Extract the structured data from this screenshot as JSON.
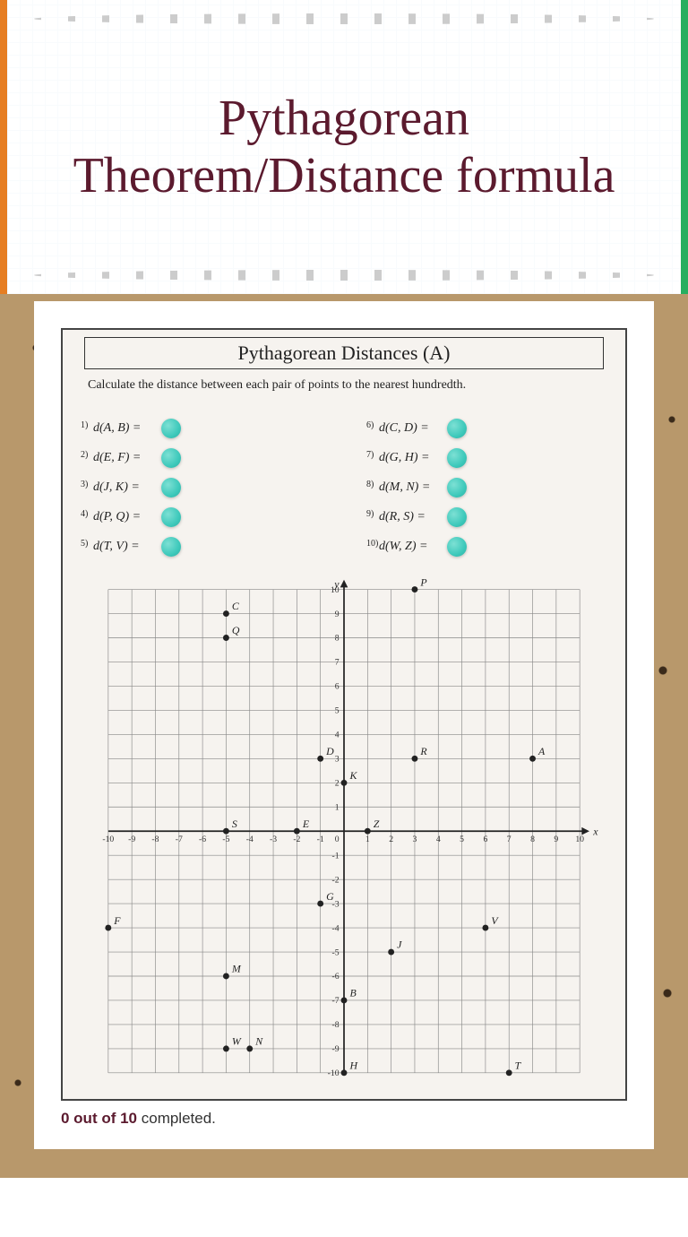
{
  "header": {
    "title": "Pythagorean Theorem/Distance formula",
    "title_color": "#5b1a2e",
    "title_fontsize": 56
  },
  "worksheet": {
    "title": "Pythagorean Distances (A)",
    "instruction": "Calculate the distance between each pair of points to the nearest hundredth.",
    "problems_left": [
      {
        "n": "1)",
        "label": "d(A, B) ="
      },
      {
        "n": "2)",
        "label": "d(E, F) ="
      },
      {
        "n": "3)",
        "label": "d(J, K) ="
      },
      {
        "n": "4)",
        "label": "d(P, Q) ="
      },
      {
        "n": "5)",
        "label": "d(T, V) ="
      }
    ],
    "problems_right": [
      {
        "n": "6)",
        "label": "d(C, D) ="
      },
      {
        "n": "7)",
        "label": "d(G, H) ="
      },
      {
        "n": "8)",
        "label": "d(M, N) ="
      },
      {
        "n": "9)",
        "label": "d(R, S) ="
      },
      {
        "n": "10)",
        "label": "d(W, Z) ="
      }
    ],
    "graph": {
      "xlim": [
        -10,
        10
      ],
      "ylim": [
        -10,
        10
      ],
      "tick_step": 1,
      "background": "#f6f3ef",
      "grid_color": "#888888",
      "axis_color": "#222222",
      "points": [
        {
          "l": "A",
          "x": 8,
          "y": 3
        },
        {
          "l": "B",
          "x": 0,
          "y": -7
        },
        {
          "l": "C",
          "x": -5,
          "y": 9
        },
        {
          "l": "D",
          "x": -1,
          "y": 3
        },
        {
          "l": "E",
          "x": -2,
          "y": 0
        },
        {
          "l": "F",
          "x": -10,
          "y": -4
        },
        {
          "l": "G",
          "x": -1,
          "y": -3
        },
        {
          "l": "H",
          "x": 0,
          "y": -10
        },
        {
          "l": "J",
          "x": 2,
          "y": -5
        },
        {
          "l": "K",
          "x": 0,
          "y": 2
        },
        {
          "l": "M",
          "x": -5,
          "y": -6
        },
        {
          "l": "N",
          "x": -4,
          "y": -9
        },
        {
          "l": "P",
          "x": 3,
          "y": 10
        },
        {
          "l": "Q",
          "x": -5,
          "y": 8
        },
        {
          "l": "R",
          "x": 3,
          "y": 3
        },
        {
          "l": "S",
          "x": -5,
          "y": 0
        },
        {
          "l": "T",
          "x": 7,
          "y": -10
        },
        {
          "l": "V",
          "x": 6,
          "y": -4
        },
        {
          "l": "W",
          "x": -5,
          "y": -9
        },
        {
          "l": "Z",
          "x": 1,
          "y": 0
        }
      ],
      "point_radius": 3.2,
      "point_color": "#222222"
    }
  },
  "progress": {
    "bold": "0 out of 10",
    "rest": " completed."
  },
  "colors": {
    "cork": "#b8986b",
    "card": "#ffffff",
    "dot": "#3ec9bb"
  }
}
